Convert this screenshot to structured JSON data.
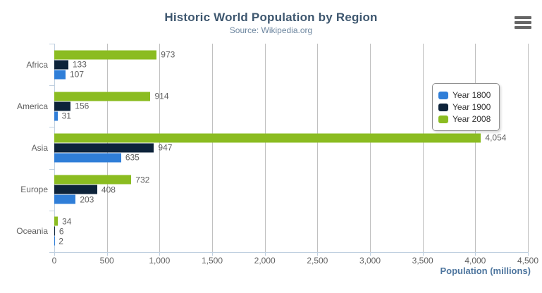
{
  "title": "Historic World Population by Region",
  "subtitle": "Source: Wikipedia.org",
  "context_menu": {
    "icon": "hamburger-menu-icon",
    "color": "#666666"
  },
  "colors": {
    "title": "#3E576F",
    "subtitle": "#6D869F",
    "axis_line": "#C0D0E0",
    "gridline": "#C0C0C0",
    "labels": "#606060",
    "axis_title": "#4d759e",
    "legend_border": "#909090",
    "legend_text": "#333333"
  },
  "chart_data": {
    "type": "bar",
    "orientation": "horizontal",
    "title": "Historic World Population by Region",
    "subtitle": "Source: Wikipedia.org",
    "categories": [
      "Africa",
      "America",
      "Asia",
      "Europe",
      "Oceania"
    ],
    "series": [
      {
        "name": "Year 1800",
        "color": "#2f7ed8",
        "values": [
          107,
          31,
          635,
          203,
          2
        ]
      },
      {
        "name": "Year 1900",
        "color": "#0d233a",
        "values": [
          133,
          156,
          947,
          408,
          6
        ]
      },
      {
        "name": "Year 2008",
        "color": "#8bbc21",
        "values": [
          973,
          914,
          4054,
          732,
          34
        ]
      }
    ],
    "bar_order_top_to_bottom": [
      "Year 2008",
      "Year 1900",
      "Year 1800"
    ],
    "data_labels": true,
    "xlabel": "Population (millions)",
    "ylabel": "",
    "xlim": [
      0,
      4500
    ],
    "x_ticks": [
      0,
      500,
      1000,
      1500,
      2000,
      2500,
      3000,
      3500,
      4000,
      4500
    ],
    "x_tick_labels": [
      "0",
      "500",
      "1,000",
      "1,500",
      "2,000",
      "2,500",
      "3,000",
      "3,500",
      "4,000",
      "4,500"
    ],
    "grid": "vertical-only",
    "legend_position": "middle-right"
  }
}
